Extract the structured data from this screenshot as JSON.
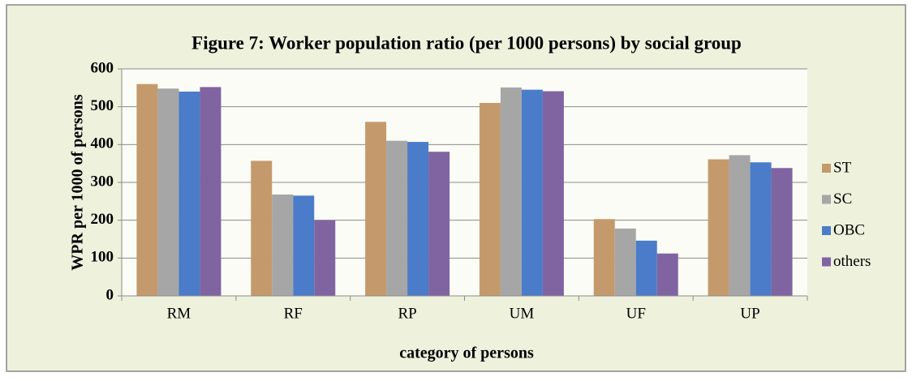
{
  "chart_data": {
    "type": "bar",
    "title": "Figure 7: Worker population ratio (per 1000 persons) by social group",
    "x_label": "category of persons",
    "y_label": "WPR per 1000 of persons",
    "categories": [
      "RM",
      "RF",
      "RP",
      "UM",
      "UF",
      "UP"
    ],
    "series": [
      {
        "name": "ST",
        "color": "#c49a6c",
        "values": [
          560,
          357,
          460,
          510,
          203,
          361
        ]
      },
      {
        "name": "SC",
        "color": "#a6a6a6",
        "values": [
          548,
          268,
          410,
          551,
          178,
          372
        ]
      },
      {
        "name": "OBC",
        "color": "#4a7cc9",
        "values": [
          540,
          265,
          407,
          545,
          146,
          353
        ]
      },
      {
        "name": "others",
        "color": "#8064a2",
        "values": [
          552,
          200,
          381,
          541,
          112,
          338
        ]
      }
    ],
    "ylim": [
      0,
      600
    ],
    "yticks": [
      0,
      100,
      200,
      300,
      400,
      500,
      600
    ],
    "grid": true,
    "legend": "right"
  }
}
